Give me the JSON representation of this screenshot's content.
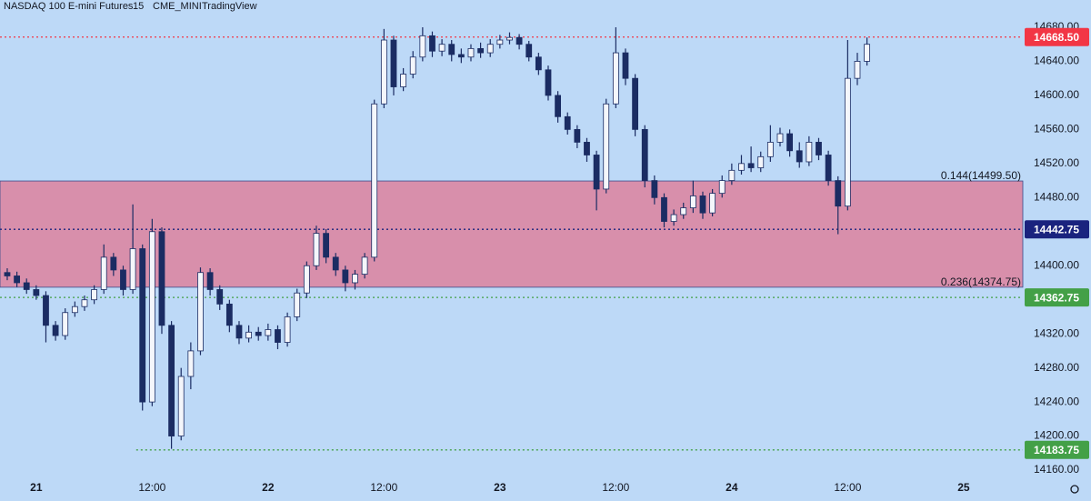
{
  "chart_data": {
    "type": "candlestick",
    "title": "NASDAQ 100 E-mini Futures",
    "interval": "15",
    "exchange": "CME_MINI",
    "source": "TradingView",
    "background": "#bdd9f7",
    "up_color": "#f4f6fb",
    "down_color": "#1b2c63",
    "wick_color": "#1b2c63",
    "xlim": [
      -3.75,
      102.13
    ],
    "ylim": [
      14151.5,
      14712
    ],
    "xticks": [
      {
        "value": 0,
        "label": "21"
      },
      {
        "value": 12,
        "label": "12:00"
      },
      {
        "value": 24,
        "label": "22"
      },
      {
        "value": 36,
        "label": "12:00"
      },
      {
        "value": 48,
        "label": "23"
      },
      {
        "value": 60,
        "label": "12:00"
      },
      {
        "value": 72,
        "label": "24"
      },
      {
        "value": 84,
        "label": "12:00"
      },
      {
        "value": 96,
        "label": "25"
      }
    ],
    "yticks": [
      {
        "value": 14160,
        "label": "14160.00"
      },
      {
        "value": 14200,
        "label": "14200.00"
      },
      {
        "value": 14240,
        "label": "14240.00"
      },
      {
        "value": 14280,
        "label": "14280.00"
      },
      {
        "value": 14320,
        "label": "14320.00"
      },
      {
        "value": 14360,
        "label": "14360.00"
      },
      {
        "value": 14400,
        "label": "14400.00"
      },
      {
        "value": 14440,
        "label": "14440.00"
      },
      {
        "value": 14480,
        "label": "14480.00"
      },
      {
        "value": 14520,
        "label": "14520.00"
      },
      {
        "value": 14560,
        "label": "14560.00"
      },
      {
        "value": 14600,
        "label": "14600.00"
      },
      {
        "value": 14640,
        "label": "14640.00"
      },
      {
        "value": 14680,
        "label": "14680.00"
      }
    ],
    "zone": {
      "top": 14499.5,
      "bottom": 14374.75,
      "top_label": "0.144(14499.50)",
      "bottom_label": "0.236(14374.75)",
      "color": "#d88fab",
      "border": "#3a4a8a"
    },
    "levels": [
      {
        "value": 14668.5,
        "label": "14668.50",
        "color": "#f23645",
        "x_start": -3.75
      },
      {
        "value": 14442.75,
        "label": "14442.75",
        "color": "#1a237e",
        "x_start": -3.75
      },
      {
        "value": 14362.75,
        "label": "14362.75",
        "color": "#43a047",
        "x_start": -3.75
      },
      {
        "value": 14183.75,
        "label": "14183.75",
        "color": "#43a047",
        "x_start": 10.35
      }
    ],
    "x": [
      -3,
      -2,
      -1,
      0,
      1,
      2,
      3,
      4,
      5,
      6,
      7,
      8,
      9,
      10,
      11,
      12,
      13,
      14,
      15,
      16,
      17,
      18,
      19,
      20,
      21,
      22,
      23,
      24,
      25,
      26,
      27,
      28,
      29,
      30,
      31,
      32,
      33,
      34,
      35,
      36,
      37,
      38,
      39,
      40,
      41,
      42,
      43,
      44,
      45,
      46,
      47,
      48,
      49,
      50,
      51,
      52,
      53,
      54,
      55,
      56,
      57,
      58,
      59,
      60,
      61,
      62,
      63,
      64,
      65,
      66,
      67,
      68,
      69,
      70,
      71,
      72,
      73,
      74,
      75,
      76,
      77,
      78,
      79,
      80,
      81,
      82,
      83,
      84,
      85,
      86
    ],
    "open": [
      14392,
      14388,
      14380,
      14372,
      14365,
      14330,
      14318,
      14345,
      14352,
      14360,
      14372,
      14410,
      14395,
      14372,
      14420,
      14240,
      14440,
      14330,
      14200,
      14270,
      14300,
      14392,
      14372,
      14355,
      14330,
      14315,
      14322,
      14318,
      14325,
      14310,
      14340,
      14368,
      14400,
      14438,
      14410,
      14395,
      14380,
      14390,
      14410,
      14590,
      14665,
      14610,
      14625,
      14645,
      14670,
      14652,
      14660,
      14648,
      14645,
      14655,
      14650,
      14660,
      14665,
      14668,
      14660,
      14645,
      14630,
      14600,
      14575,
      14560,
      14545,
      14530,
      14490,
      14590,
      14650,
      14620,
      14560,
      14500,
      14480,
      14452,
      14460,
      14468,
      14482,
      14462,
      14485,
      14500,
      14512,
      14520,
      14515,
      14528,
      14545,
      14555,
      14535,
      14522,
      14545,
      14530,
      14500,
      14470,
      14620,
      14640
    ],
    "high": [
      14397,
      14393,
      14385,
      14377,
      14370,
      14335,
      14350,
      14358,
      14365,
      14377,
      14425,
      14415,
      14400,
      14472,
      14425,
      14455,
      14445,
      14335,
      14280,
      14310,
      14398,
      14397,
      14377,
      14360,
      14335,
      14330,
      14328,
      14332,
      14330,
      14345,
      14373,
      14405,
      14447,
      14443,
      14415,
      14400,
      14395,
      14415,
      14595,
      14678,
      14670,
      14632,
      14652,
      14680,
      14675,
      14666,
      14665,
      14655,
      14660,
      14662,
      14666,
      14671,
      14674,
      14672,
      14664,
      14650,
      14635,
      14605,
      14580,
      14565,
      14550,
      14535,
      14596,
      14680,
      14655,
      14625,
      14565,
      14506,
      14485,
      14466,
      14474,
      14500,
      14487,
      14490,
      14506,
      14520,
      14530,
      14540,
      14534,
      14565,
      14562,
      14560,
      14545,
      14552,
      14550,
      14535,
      14505,
      14665,
      14650,
      14668
    ],
    "low": [
      14383,
      14375,
      14367,
      14360,
      14310,
      14312,
      14313,
      14340,
      14347,
      14355,
      14367,
      14388,
      14365,
      14367,
      14230,
      14235,
      14320,
      14185,
      14195,
      14255,
      14295,
      14365,
      14348,
      14322,
      14308,
      14310,
      14312,
      14312,
      14302,
      14305,
      14335,
      14362,
      14395,
      14403,
      14388,
      14370,
      14372,
      14385,
      14405,
      14585,
      14600,
      14605,
      14620,
      14640,
      14645,
      14646,
      14640,
      14638,
      14640,
      14644,
      14645,
      14655,
      14660,
      14654,
      14640,
      14624,
      14594,
      14568,
      14554,
      14538,
      14522,
      14465,
      14485,
      14585,
      14612,
      14552,
      14492,
      14472,
      14445,
      14447,
      14455,
      14462,
      14455,
      14458,
      14480,
      14495,
      14507,
      14510,
      14510,
      14522,
      14540,
      14528,
      14515,
      14517,
      14524,
      14494,
      14437,
      14465,
      14612,
      14635
    ],
    "close": [
      14388,
      14380,
      14372,
      14365,
      14330,
      14318,
      14345,
      14352,
      14360,
      14372,
      14410,
      14395,
      14372,
      14420,
      14240,
      14440,
      14330,
      14200,
      14270,
      14300,
      14392,
      14372,
      14355,
      14330,
      14315,
      14322,
      14318,
      14325,
      14310,
      14340,
      14368,
      14400,
      14438,
      14410,
      14395,
      14380,
      14390,
      14410,
      14590,
      14665,
      14610,
      14625,
      14645,
      14670,
      14652,
      14660,
      14648,
      14645,
      14655,
      14650,
      14660,
      14665,
      14668,
      14660,
      14645,
      14630,
      14600,
      14575,
      14560,
      14545,
      14530,
      14490,
      14590,
      14650,
      14620,
      14560,
      14500,
      14480,
      14452,
      14460,
      14468,
      14482,
      14462,
      14485,
      14500,
      14512,
      14520,
      14515,
      14528,
      14545,
      14555,
      14535,
      14522,
      14545,
      14530,
      14500,
      14470,
      14620,
      14640,
      14660
    ]
  }
}
